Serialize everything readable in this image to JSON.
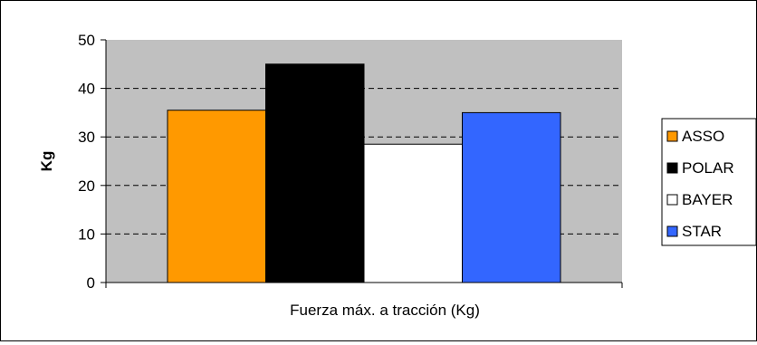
{
  "chart_data": {
    "type": "bar",
    "xlabel": "Fuerza máx. a tracción (Kg)",
    "ylabel": "Kg",
    "ylim": [
      0,
      50
    ],
    "yticks": [
      0,
      10,
      20,
      30,
      40,
      50
    ],
    "grid": true,
    "legend_position": "right",
    "plot_background": "#c0c0c0",
    "series": [
      {
        "name": "ASSO",
        "value": 35.5,
        "color": "#ff9900"
      },
      {
        "name": "POLAR",
        "value": 45,
        "color": "#000000"
      },
      {
        "name": "BAYER",
        "value": 28.5,
        "color": "#ffffff"
      },
      {
        "name": "STAR",
        "value": 35,
        "color": "#3366ff"
      }
    ]
  }
}
